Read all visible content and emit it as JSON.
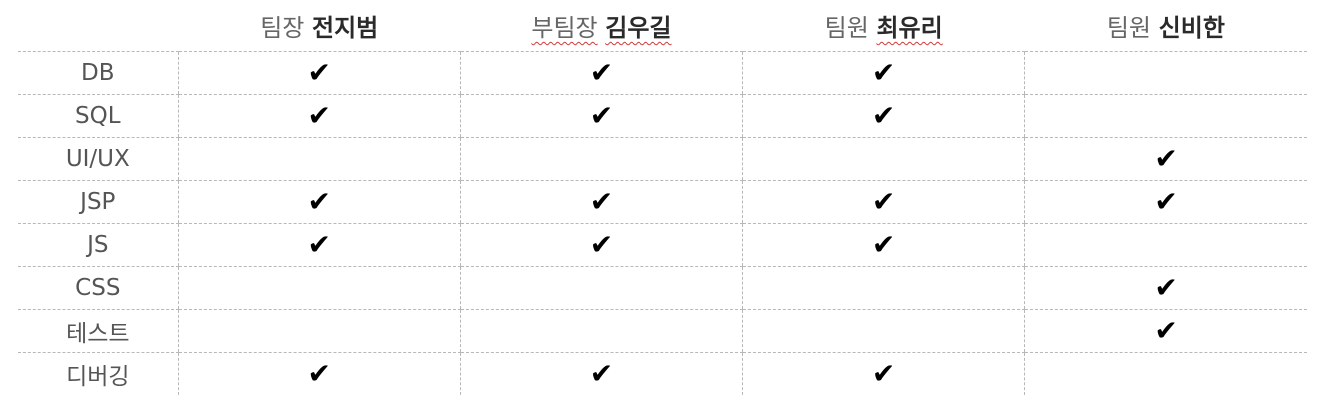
{
  "team": {
    "columns": [
      {
        "role": "팀장",
        "name": "전지범"
      },
      {
        "role": "부팀장",
        "name": "김우길"
      },
      {
        "role": "팀원",
        "name": "최유리"
      },
      {
        "role": "팀원",
        "name": "신비한"
      }
    ],
    "check_symbol": "✔",
    "rows": [
      {
        "skill": "DB",
        "marks": [
          "✔",
          "✔",
          "✔",
          ""
        ]
      },
      {
        "skill": "SQL",
        "marks": [
          "✔",
          "✔",
          "✔",
          ""
        ]
      },
      {
        "skill": "UI/UX",
        "marks": [
          "",
          "",
          "",
          "✔"
        ]
      },
      {
        "skill": "JSP",
        "marks": [
          "✔",
          "✔",
          "✔",
          "✔"
        ]
      },
      {
        "skill": "JS",
        "marks": [
          "✔",
          "✔",
          "✔",
          ""
        ]
      },
      {
        "skill": "CSS",
        "marks": [
          "",
          "",
          "",
          "✔"
        ]
      },
      {
        "skill": "테스트",
        "marks": [
          "",
          "",
          "",
          "✔"
        ]
      },
      {
        "skill": "디버깅",
        "marks": [
          "✔",
          "✔",
          "✔",
          ""
        ]
      }
    ]
  }
}
